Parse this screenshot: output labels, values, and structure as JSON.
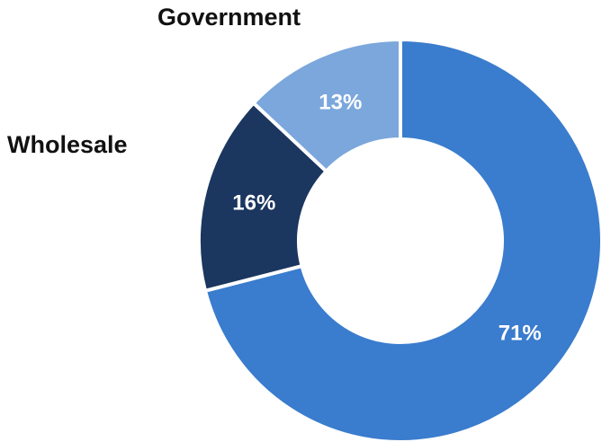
{
  "chart_data": {
    "type": "pie",
    "variant": "donut",
    "slices": [
      {
        "label": "",
        "value": 71,
        "display": "71%",
        "color": "#3a7ccd"
      },
      {
        "label": "Wholesale",
        "value": 16,
        "display": "16%",
        "color": "#1b365f"
      },
      {
        "label": "Government",
        "value": 13,
        "display": "13%",
        "color": "#7ba7dc"
      }
    ],
    "legend": "none",
    "start": "12 o'clock",
    "direction": "clockwise"
  }
}
